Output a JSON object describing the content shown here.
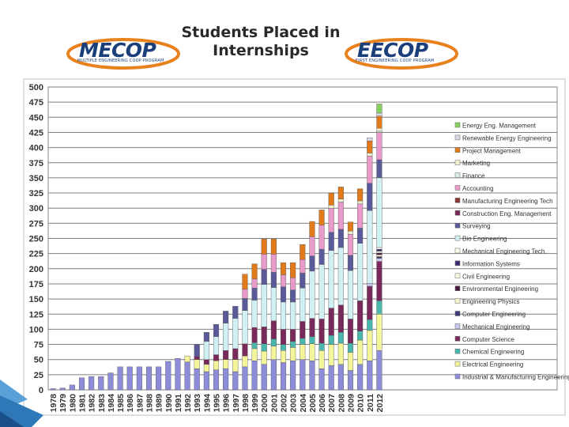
{
  "header": {
    "title_line1": "Students Placed in",
    "title_line2": "Internships",
    "logo_left": "MECOP",
    "logo_left_tagline": "MULTIPLE ENGINEERING COOP PROGRAM",
    "logo_right": "EECOP",
    "logo_right_tagline": "FIRST ENGINEERING COOP PROGRAM"
  },
  "chart_data": {
    "type": "bar",
    "stacked": true,
    "title": "Students Placed in Internships",
    "xlabel": "",
    "ylabel": "",
    "ylim": [
      0,
      500
    ],
    "yticks": [
      0,
      25,
      50,
      75,
      100,
      125,
      150,
      175,
      200,
      225,
      250,
      275,
      300,
      325,
      350,
      375,
      400,
      425,
      450,
      475,
      500
    ],
    "grid": true,
    "legend_position": "right",
    "categories": [
      "1978",
      "1979",
      "1980",
      "1981",
      "1982",
      "1983",
      "1984",
      "1985",
      "1986",
      "1987",
      "1988",
      "1989",
      "1990",
      "1991",
      "1992",
      "1993",
      "1994",
      "1995",
      "1996",
      "1997",
      "1998",
      "1999",
      "2000",
      "2001",
      "2002",
      "2003",
      "2004",
      "2005",
      "2006",
      "2007",
      "2008",
      "2009",
      "2010",
      "2011",
      "2012"
    ],
    "series": [
      {
        "name": "Industrial & Manufacturing Engineering",
        "color": "#8c8cd8",
        "values": [
          2,
          3,
          8,
          20,
          22,
          22,
          28,
          38,
          38,
          38,
          38,
          38,
          47,
          52,
          46,
          35,
          30,
          33,
          35,
          30,
          38,
          48,
          42,
          50,
          45,
          48,
          50,
          48,
          35,
          40,
          42,
          32,
          42,
          48,
          65
        ]
      },
      {
        "name": "Electrical Engineering",
        "color": "#f4f49a",
        "values": [
          0,
          0,
          0,
          0,
          0,
          0,
          0,
          0,
          0,
          0,
          0,
          0,
          0,
          0,
          10,
          15,
          12,
          15,
          15,
          20,
          18,
          20,
          22,
          22,
          20,
          22,
          25,
          28,
          30,
          35,
          35,
          30,
          40,
          50,
          60
        ]
      },
      {
        "name": "Chemical Engineering",
        "color": "#4ab6ae",
        "values": [
          0,
          0,
          0,
          0,
          0,
          0,
          0,
          0,
          0,
          0,
          0,
          0,
          0,
          0,
          0,
          0,
          0,
          0,
          0,
          0,
          0,
          10,
          12,
          12,
          10,
          10,
          10,
          12,
          12,
          15,
          18,
          15,
          15,
          18,
          22
        ]
      },
      {
        "name": "Computer Science",
        "color": "#7a2a5a",
        "values": [
          0,
          0,
          0,
          0,
          0,
          0,
          0,
          0,
          0,
          0,
          0,
          0,
          0,
          0,
          0,
          5,
          8,
          10,
          15,
          18,
          20,
          25,
          28,
          30,
          25,
          20,
          28,
          30,
          40,
          45,
          45,
          40,
          50,
          55,
          65
        ]
      },
      {
        "name": "Mechanical Engineering",
        "color": "#c8c8ee",
        "values": [
          0,
          0,
          0,
          0,
          0,
          0,
          0,
          0,
          0,
          0,
          0,
          0,
          0,
          0,
          0,
          0,
          0,
          0,
          0,
          0,
          0,
          0,
          0,
          0,
          0,
          0,
          0,
          0,
          0,
          0,
          0,
          0,
          0,
          5,
          5
        ]
      },
      {
        "name": "Computer Engineering",
        "color": "#3b3b7a",
        "values": [
          0,
          0,
          0,
          0,
          0,
          0,
          0,
          0,
          0,
          0,
          0,
          0,
          0,
          0,
          0,
          0,
          0,
          0,
          0,
          0,
          0,
          0,
          0,
          0,
          0,
          0,
          0,
          0,
          0,
          0,
          0,
          0,
          0,
          0,
          3
        ]
      },
      {
        "name": "Engineering Physics",
        "color": "#f8f8d0",
        "values": [
          0,
          0,
          0,
          0,
          0,
          0,
          0,
          0,
          0,
          0,
          0,
          0,
          0,
          0,
          0,
          0,
          0,
          0,
          0,
          0,
          0,
          0,
          0,
          0,
          0,
          0,
          0,
          0,
          0,
          0,
          0,
          0,
          0,
          0,
          3
        ]
      },
      {
        "name": "Environmental Engineering",
        "color": "#4a1a3a",
        "values": [
          0,
          0,
          0,
          0,
          0,
          0,
          0,
          0,
          0,
          0,
          0,
          0,
          0,
          0,
          0,
          0,
          0,
          0,
          0,
          0,
          0,
          0,
          0,
          0,
          0,
          0,
          0,
          0,
          0,
          0,
          0,
          0,
          0,
          0,
          3
        ]
      },
      {
        "name": "Civil Engineering",
        "color": "#f8f8e0",
        "values": [
          0,
          0,
          0,
          0,
          0,
          0,
          0,
          0,
          0,
          0,
          0,
          0,
          0,
          0,
          0,
          0,
          0,
          0,
          0,
          0,
          0,
          0,
          0,
          0,
          0,
          0,
          0,
          0,
          0,
          0,
          0,
          0,
          0,
          0,
          3
        ]
      },
      {
        "name": "Information Systems",
        "color": "#3e2a70",
        "values": [
          0,
          0,
          0,
          0,
          0,
          0,
          0,
          0,
          0,
          0,
          0,
          0,
          0,
          0,
          0,
          0,
          0,
          0,
          0,
          0,
          0,
          0,
          0,
          0,
          0,
          0,
          0,
          0,
          0,
          0,
          0,
          0,
          0,
          0,
          3
        ]
      },
      {
        "name": "Mechanical Engineering Tech.",
        "color": "#fafae8",
        "values": [
          0,
          0,
          0,
          0,
          0,
          0,
          0,
          0,
          0,
          0,
          0,
          0,
          0,
          0,
          0,
          0,
          0,
          0,
          0,
          0,
          0,
          0,
          0,
          0,
          0,
          0,
          0,
          0,
          0,
          0,
          0,
          0,
          0,
          0,
          3
        ]
      },
      {
        "name": "Bio Engineering",
        "color": "#d0f0f4",
        "values": [
          0,
          0,
          0,
          0,
          0,
          0,
          0,
          0,
          0,
          0,
          0,
          0,
          0,
          0,
          0,
          0,
          30,
          30,
          45,
          50,
          55,
          45,
          70,
          55,
          45,
          45,
          55,
          78,
          90,
          95,
          95,
          80,
          95,
          120,
          115
        ]
      },
      {
        "name": "Surveying",
        "color": "#5a5a9a",
        "values": [
          0,
          0,
          0,
          0,
          0,
          0,
          0,
          0,
          0,
          0,
          0,
          0,
          0,
          0,
          0,
          20,
          15,
          20,
          20,
          20,
          20,
          20,
          25,
          25,
          25,
          20,
          25,
          25,
          25,
          30,
          30,
          25,
          25,
          45,
          30
        ]
      },
      {
        "name": "Construction Eng. Management",
        "color": "#7a2a5a",
        "values": [
          0,
          0,
          0,
          0,
          0,
          0,
          0,
          0,
          0,
          0,
          0,
          0,
          0,
          0,
          0,
          0,
          0,
          0,
          0,
          0,
          0,
          0,
          0,
          0,
          0,
          0,
          0,
          0,
          0,
          0,
          0,
          0,
          0,
          0,
          0
        ]
      },
      {
        "name": "Manufacturing Engineering Tech",
        "color": "#8a3a3a",
        "values": [
          0,
          0,
          0,
          0,
          0,
          0,
          0,
          0,
          0,
          0,
          0,
          0,
          0,
          0,
          0,
          0,
          0,
          0,
          0,
          0,
          0,
          0,
          0,
          0,
          0,
          0,
          0,
          0,
          0,
          0,
          0,
          0,
          0,
          0,
          0
        ]
      },
      {
        "name": "Accounting",
        "color": "#e89ac8",
        "values": [
          0,
          0,
          0,
          0,
          0,
          0,
          0,
          0,
          0,
          0,
          0,
          0,
          0,
          0,
          0,
          0,
          0,
          0,
          0,
          0,
          15,
          15,
          25,
          30,
          20,
          20,
          22,
          32,
          40,
          40,
          45,
          35,
          40,
          45,
          45
        ]
      },
      {
        "name": "Finance",
        "color": "#d8ece4",
        "values": [
          0,
          0,
          0,
          0,
          0,
          0,
          0,
          0,
          0,
          0,
          0,
          0,
          0,
          0,
          0,
          0,
          0,
          0,
          0,
          0,
          0,
          0,
          0,
          0,
          0,
          0,
          0,
          0,
          0,
          0,
          0,
          0,
          0,
          0,
          2
        ]
      },
      {
        "name": "Marketing",
        "color": "#f0f0d0",
        "values": [
          0,
          0,
          0,
          0,
          0,
          0,
          0,
          0,
          0,
          0,
          0,
          0,
          0,
          0,
          0,
          0,
          0,
          0,
          0,
          0,
          0,
          0,
          0,
          0,
          0,
          0,
          0,
          0,
          0,
          5,
          5,
          5,
          5,
          5,
          5
        ]
      },
      {
        "name": "Project Management",
        "color": "#e07a1a",
        "values": [
          0,
          0,
          0,
          0,
          0,
          0,
          0,
          0,
          0,
          0,
          0,
          0,
          0,
          0,
          0,
          0,
          0,
          0,
          0,
          0,
          25,
          25,
          25,
          25,
          20,
          25,
          25,
          25,
          25,
          20,
          20,
          15,
          20,
          20,
          20
        ]
      },
      {
        "name": "Renewable Energy Engineering",
        "color": "#d8d8e8",
        "values": [
          0,
          0,
          0,
          0,
          0,
          0,
          0,
          0,
          0,
          0,
          0,
          0,
          0,
          0,
          0,
          0,
          0,
          0,
          0,
          0,
          0,
          0,
          0,
          0,
          0,
          0,
          0,
          0,
          0,
          0,
          0,
          0,
          0,
          5,
          5
        ]
      },
      {
        "name": "Energy Eng. Management",
        "color": "#8ad060",
        "values": [
          0,
          0,
          0,
          0,
          0,
          0,
          0,
          0,
          0,
          0,
          0,
          0,
          0,
          0,
          0,
          0,
          0,
          0,
          0,
          0,
          0,
          0,
          0,
          0,
          0,
          0,
          0,
          0,
          0,
          0,
          0,
          0,
          0,
          0,
          15
        ]
      }
    ]
  }
}
